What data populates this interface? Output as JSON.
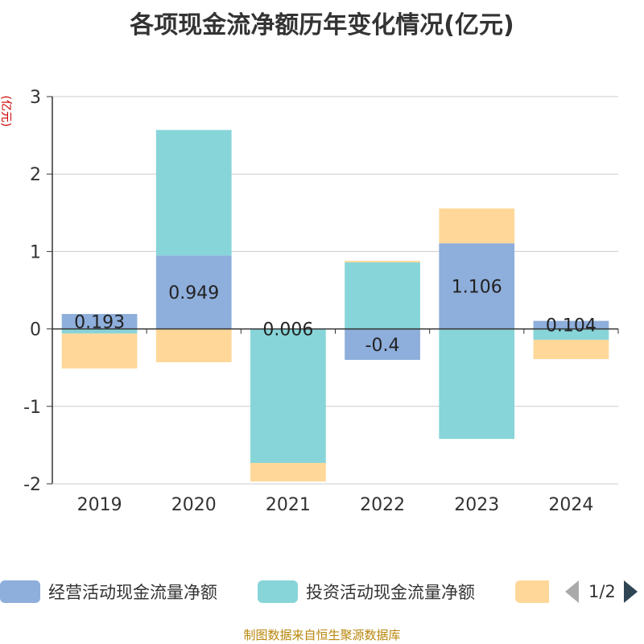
{
  "title": "各项现金流净额历年变化情况(亿元)",
  "source": "制图数据来自恒生聚源数据库",
  "pager": {
    "text": "1/2"
  },
  "chart_data": {
    "type": "bar",
    "stacked": true,
    "categories": [
      "2019",
      "2020",
      "2021",
      "2022",
      "2023",
      "2024"
    ],
    "series": [
      {
        "name": "经营活动现金流量净额",
        "color": "#8eaedb",
        "values": [
          0.193,
          0.949,
          0.006,
          -0.4,
          1.106,
          0.104
        ],
        "labels_shown": true
      },
      {
        "name": "投资活动现金流量净额",
        "color": "#87d5d8",
        "values": [
          -0.06,
          1.62,
          -1.73,
          0.86,
          -1.42,
          -0.14
        ],
        "labels_shown": false
      },
      {
        "name": "",
        "color": "#ffd899",
        "values": [
          -0.45,
          -0.43,
          -0.24,
          0.02,
          0.45,
          -0.25
        ],
        "labels_shown": false
      }
    ],
    "ylabel": "(亿元)",
    "ylim": [
      -2,
      3
    ],
    "yticks": [
      3,
      2,
      1,
      0,
      -1,
      -2
    ],
    "grid": true
  }
}
